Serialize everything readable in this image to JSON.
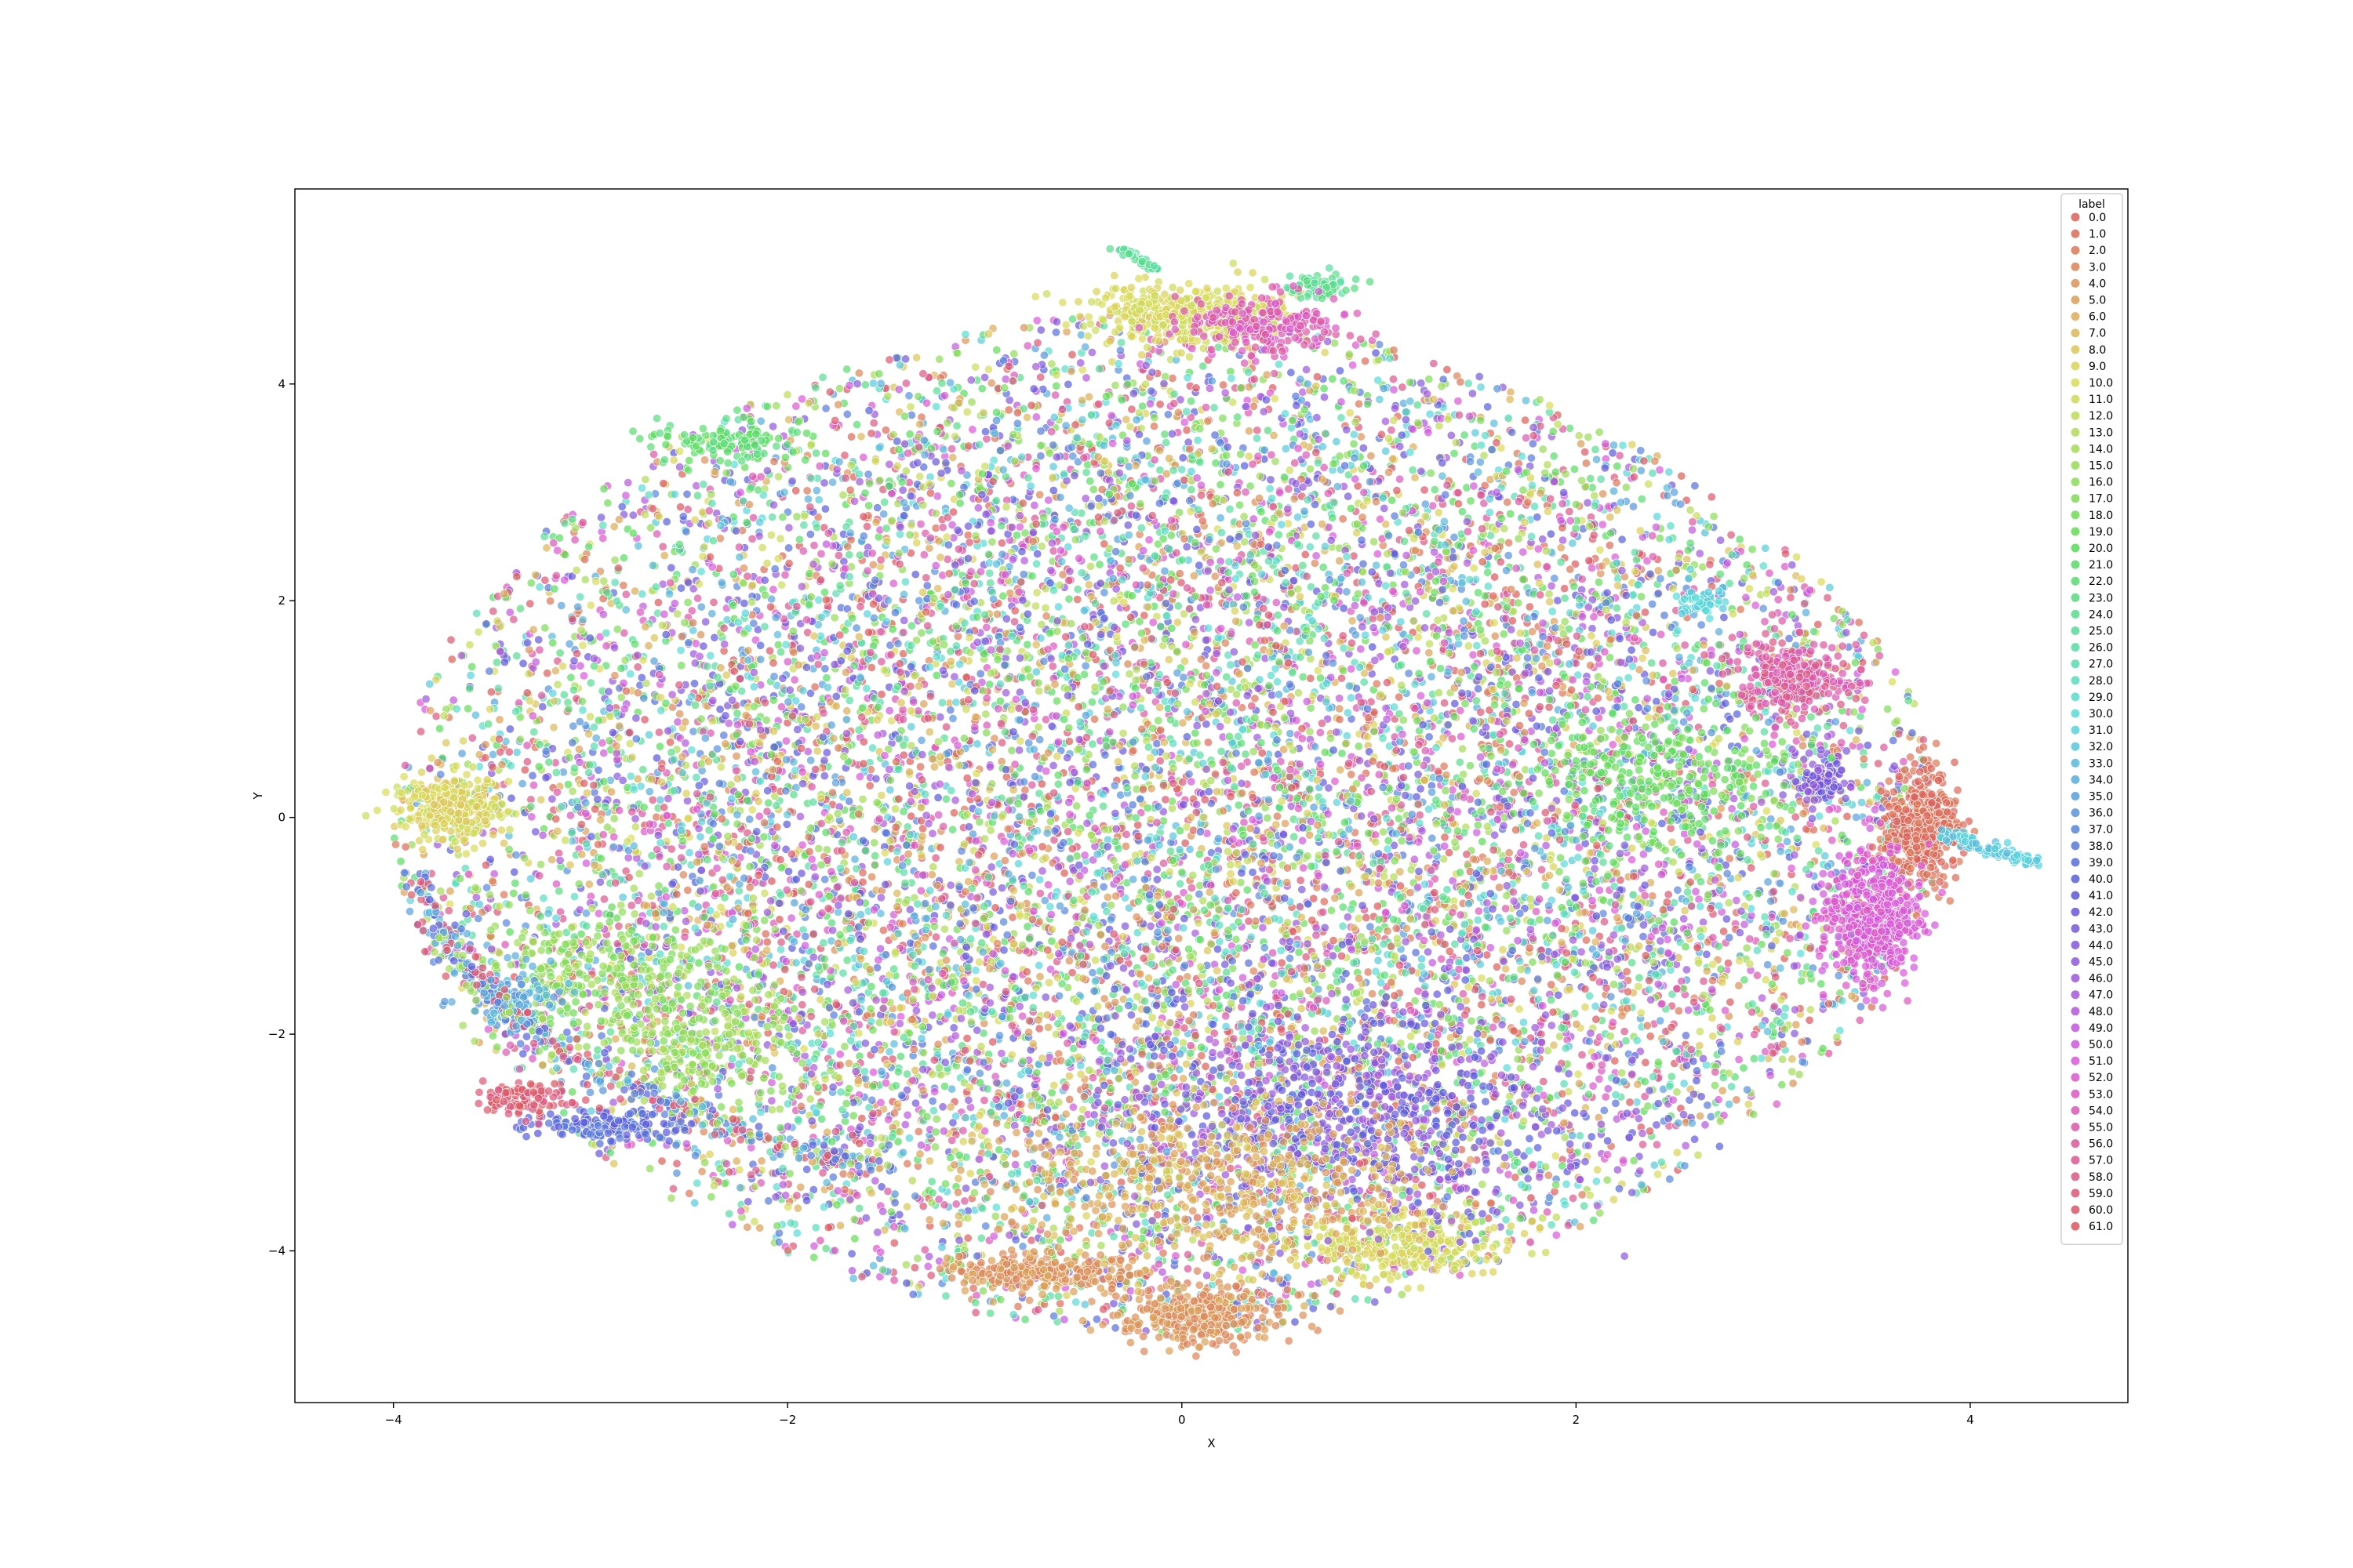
{
  "chart_data": {
    "type": "scatter",
    "title": "",
    "xlabel": "X",
    "ylabel": "Y",
    "xlim": [
      -4.5,
      4.8
    ],
    "ylim": [
      -5.4,
      5.8
    ],
    "xticks": [
      -4,
      -2,
      0,
      2,
      4
    ],
    "yticks": [
      -4,
      -2,
      0,
      2,
      4
    ],
    "xtick_labels": [
      "−4",
      "−2",
      "0",
      "2",
      "4"
    ],
    "ytick_labels": [
      "−4",
      "−2",
      "0",
      "2",
      "4"
    ],
    "grid": false,
    "legend": {
      "title": "label",
      "placement": "upper-right",
      "entries": [
        "0.0",
        "1.0",
        "2.0",
        "3.0",
        "4.0",
        "5.0",
        "6.0",
        "7.0",
        "8.0",
        "9.0",
        "10.0",
        "11.0",
        "12.0",
        "13.0",
        "14.0",
        "15.0",
        "16.0",
        "17.0",
        "18.0",
        "19.0",
        "20.0",
        "21.0",
        "22.0",
        "23.0",
        "24.0",
        "25.0",
        "26.0",
        "27.0",
        "28.0",
        "29.0",
        "30.0",
        "31.0",
        "32.0",
        "33.0",
        "34.0",
        "35.0",
        "36.0",
        "37.0",
        "38.0",
        "39.0",
        "40.0",
        "41.0",
        "42.0",
        "43.0",
        "44.0",
        "45.0",
        "46.0",
        "47.0",
        "48.0",
        "49.0",
        "50.0",
        "51.0",
        "52.0",
        "53.0",
        "54.0",
        "55.0",
        "56.0",
        "57.0",
        "58.0",
        "59.0",
        "60.0",
        "61.0"
      ]
    },
    "palette": "hls (62 hues)",
    "point_alpha": 0.7,
    "point_count_approx": 60000,
    "data_extent": {
      "x": [
        -4.05,
        4.35
      ],
      "y": [
        -4.95,
        5.25
      ]
    },
    "notable_clusters": [
      {
        "x": -3.7,
        "y": 0.1,
        "labels": "8.0–11.0"
      },
      {
        "x": 3.75,
        "y": -0.1,
        "labels": "0.0–2.0"
      },
      {
        "x": 3.5,
        "y": -0.9,
        "labels": "50.0–53.0"
      },
      {
        "x": 3.1,
        "y": 1.3,
        "labels": "54.0–58.0"
      },
      {
        "x": 3.25,
        "y": 0.35,
        "labels": "42.0–45.0"
      },
      {
        "x": 4.0,
        "y": -0.25,
        "labels": "31.0–33.0"
      },
      {
        "x": 0.0,
        "y": 4.65,
        "labels": "9.0–11.0"
      },
      {
        "x": -0.7,
        "y": -4.2,
        "labels": "3.0–5.0"
      },
      {
        "x": 0.1,
        "y": -4.6,
        "labels": "3.0–5.0"
      },
      {
        "x": 1.1,
        "y": -3.95,
        "labels": "9.0–11.0"
      },
      {
        "x": 0.7,
        "y": 4.9,
        "labels": "23.0–26.0"
      },
      {
        "x": -0.28,
        "y": 5.15,
        "labels": "25.0–27.0"
      },
      {
        "x": 0.4,
        "y": 4.6,
        "labels": "52.0–56.0"
      },
      {
        "x": 2.65,
        "y": 2.0,
        "labels": "30.0–32.0"
      },
      {
        "x": -2.3,
        "y": 3.45,
        "labels": "20.0–23.0"
      },
      {
        "x": -3.1,
        "y": -2.8,
        "labels": "38.0–41.0"
      },
      {
        "x": -3.4,
        "y": -2.6,
        "labels": "58.0–61.0"
      }
    ]
  }
}
